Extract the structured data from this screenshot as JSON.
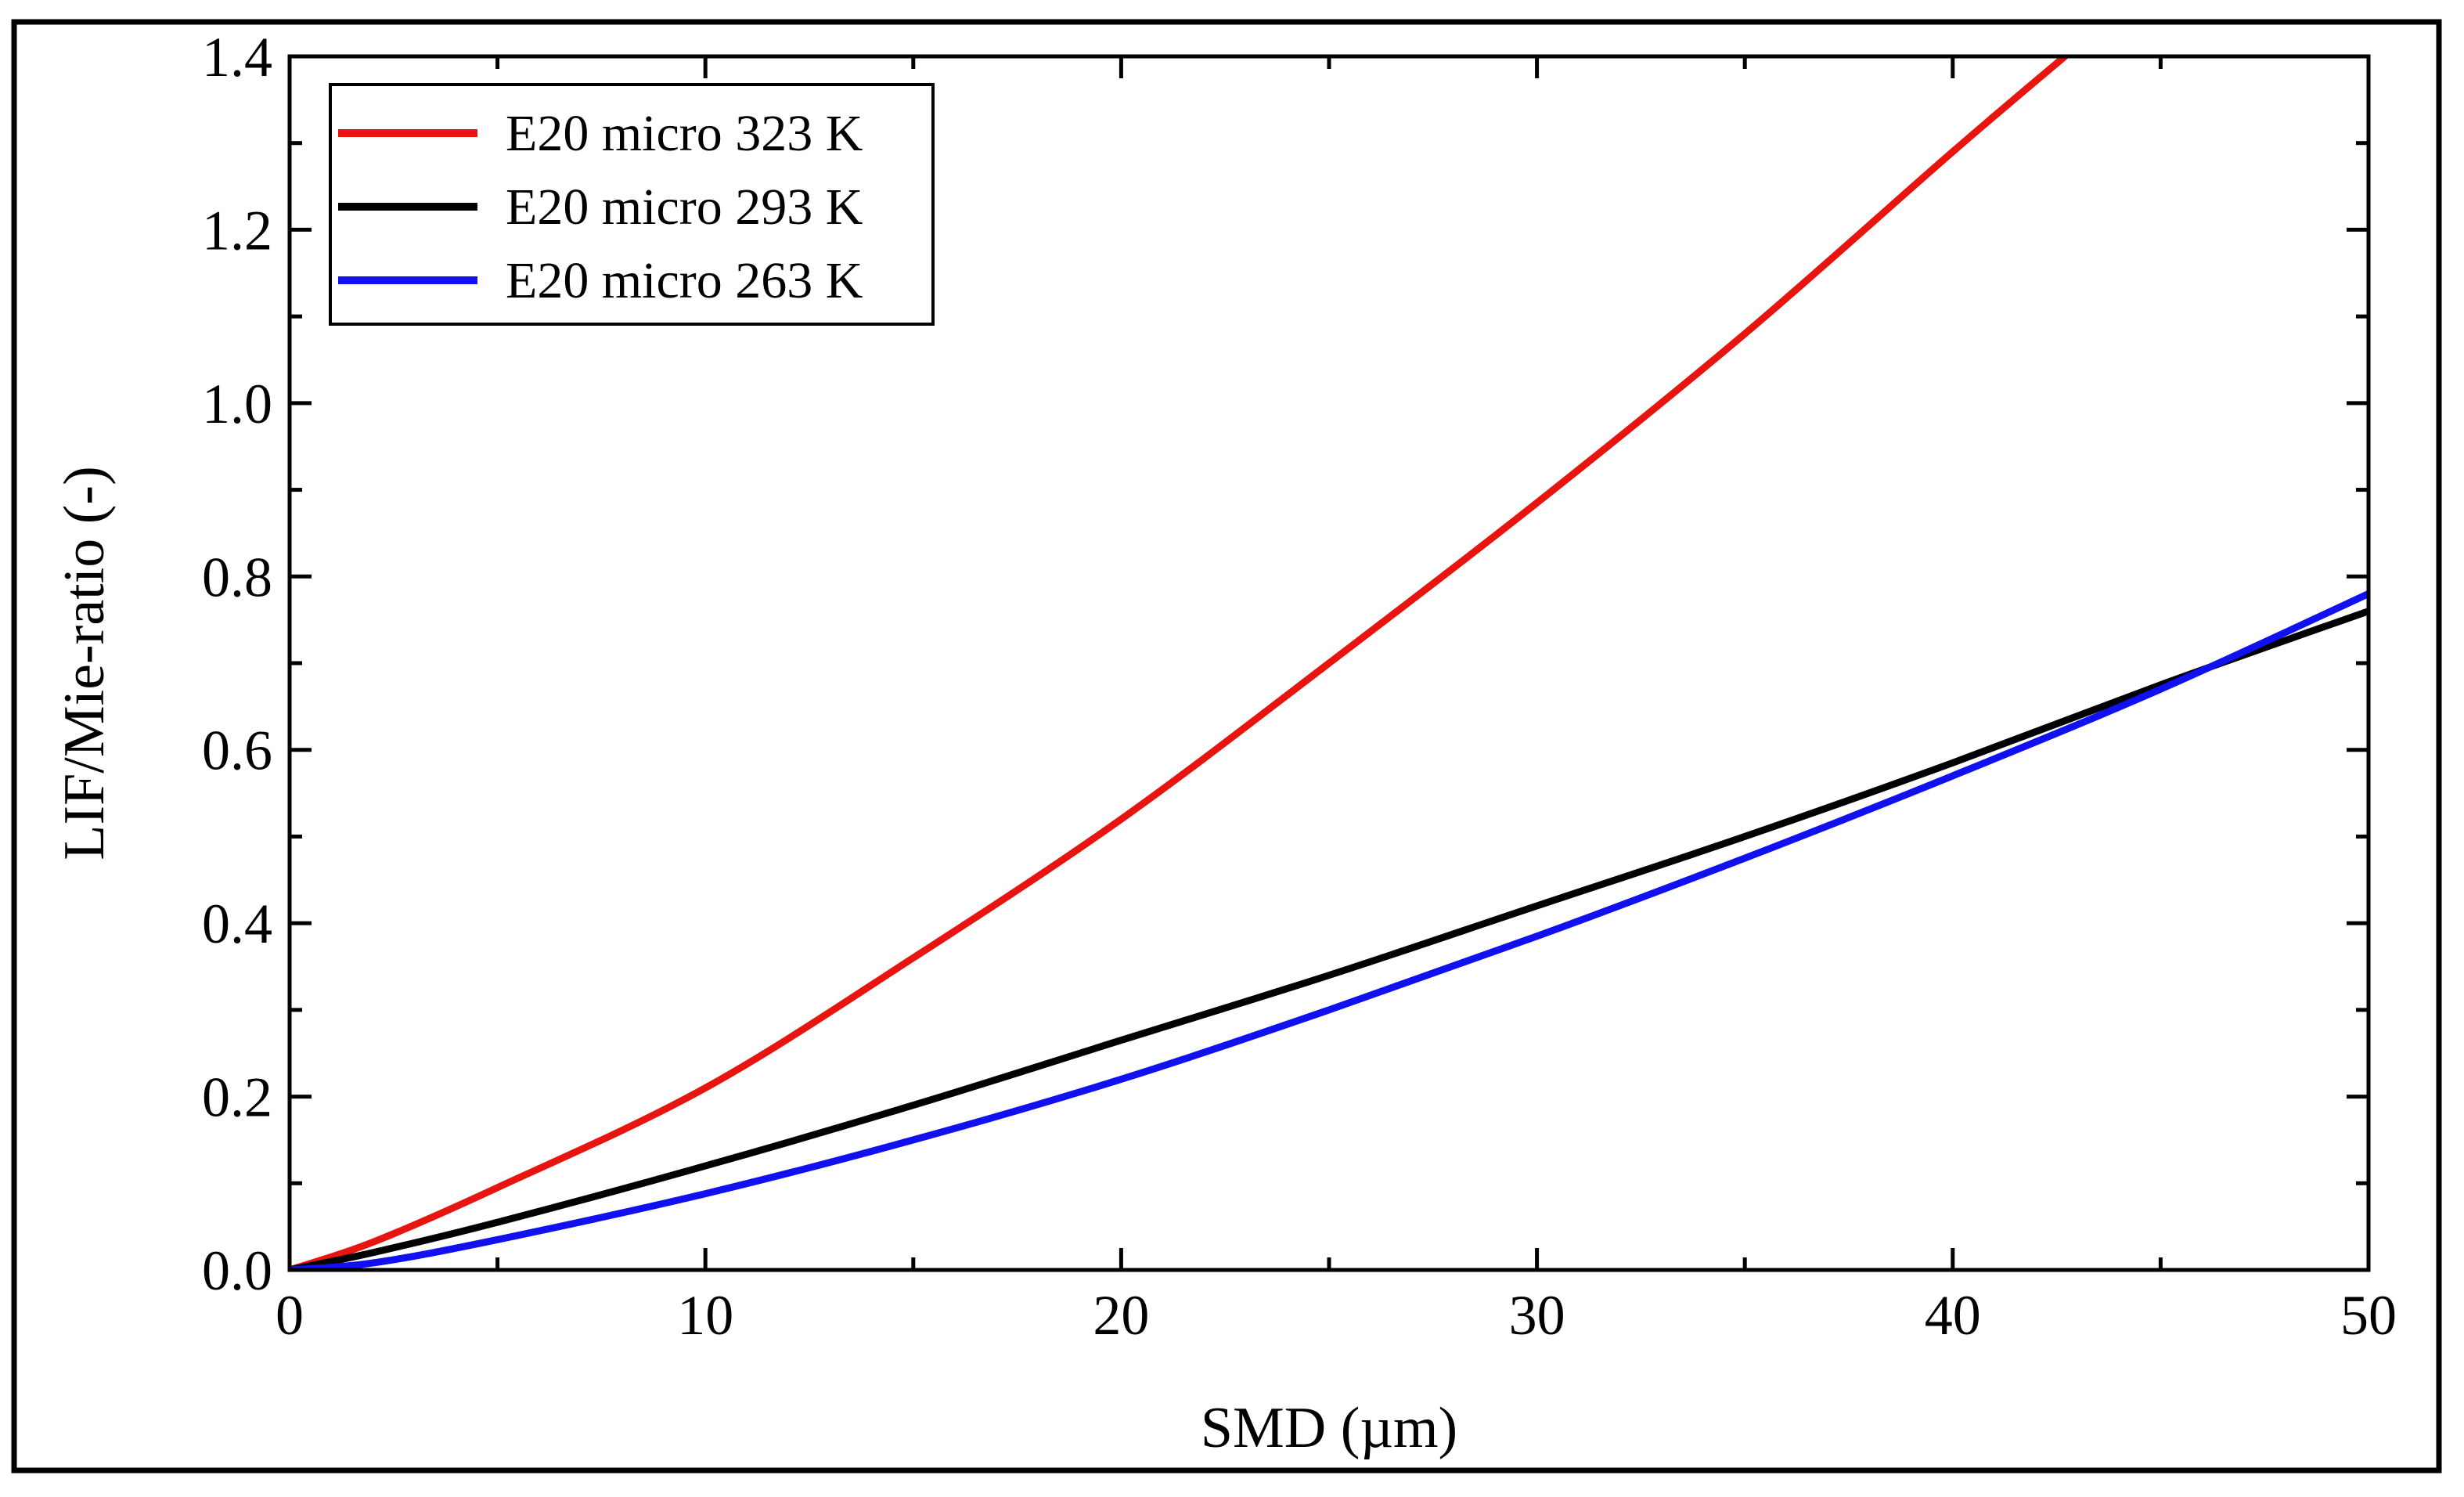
{
  "chart_data": {
    "type": "line",
    "title": "",
    "xlabel": "SMD (µm)",
    "ylabel": "LIF/Mie-ratio (-)",
    "xlim": [
      0,
      50
    ],
    "ylim": [
      0,
      1.4
    ],
    "x_ticks": [
      0,
      10,
      20,
      30,
      40,
      50
    ],
    "x_tick_labels": [
      "0",
      "10",
      "20",
      "30",
      "40",
      "50"
    ],
    "y_ticks": [
      0.0,
      0.2,
      0.4,
      0.6,
      0.8,
      1.0,
      1.2,
      1.4
    ],
    "y_tick_labels": [
      "0.0",
      "0.2",
      "0.4",
      "0.6",
      "0.8",
      "1.0",
      "1.2",
      "1.4"
    ],
    "grid": false,
    "legend_position": "top-left",
    "series": [
      {
        "name": "E20 micro 323 K",
        "color": "#e8140f",
        "x": [
          0,
          2,
          5,
          10,
          15,
          20,
          25,
          30,
          35,
          40,
          42.7
        ],
        "y": [
          0,
          0.032,
          0.095,
          0.21,
          0.36,
          0.52,
          0.7,
          0.885,
          1.08,
          1.29,
          1.4
        ]
      },
      {
        "name": "E20 micro 293 K",
        "color": "#000000",
        "x": [
          0,
          2,
          5,
          10,
          15,
          20,
          25,
          30,
          35,
          40,
          45,
          50
        ],
        "y": [
          0,
          0.02,
          0.055,
          0.12,
          0.19,
          0.265,
          0.34,
          0.42,
          0.5,
          0.585,
          0.675,
          0.76
        ]
      },
      {
        "name": "E20 micro 263 K",
        "color": "#1010f0",
        "x": [
          0,
          2,
          5,
          10,
          15,
          20,
          25,
          30,
          35,
          40,
          45,
          50
        ],
        "y": [
          0,
          0.008,
          0.035,
          0.088,
          0.15,
          0.22,
          0.3,
          0.385,
          0.475,
          0.57,
          0.67,
          0.78
        ]
      }
    ]
  }
}
